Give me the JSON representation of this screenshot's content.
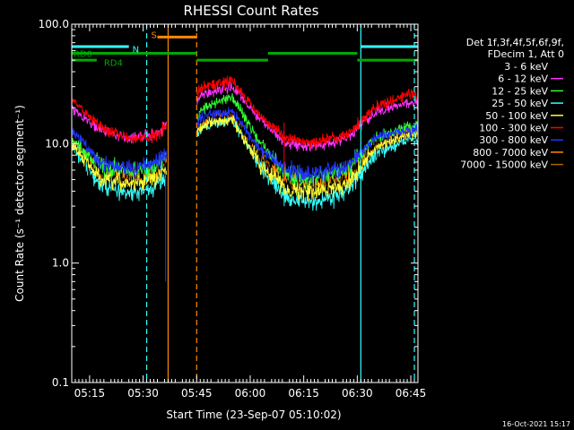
{
  "chart_data": {
    "type": "line",
    "title": "RHESSI Count Rates",
    "xlabel": "Start Time (23-Sep-07 05:10:02)",
    "ylabel": "Count Rate (s⁻¹ detector segment⁻¹)",
    "yscale": "log",
    "ylim": [
      0.1,
      100
    ],
    "xlim_minutes": [
      0,
      97
    ],
    "x_ticks": [
      {
        "label": "05:15",
        "min": 5
      },
      {
        "label": "05:30",
        "min": 20
      },
      {
        "label": "05:45",
        "min": 35
      },
      {
        "label": "06:00",
        "min": 50
      },
      {
        "label": "06:15",
        "min": 65
      },
      {
        "label": "06:30",
        "min": 80
      },
      {
        "label": "06:45",
        "min": 95
      }
    ],
    "y_ticks": [
      {
        "label": "100.0",
        "value": 100
      },
      {
        "label": "10.0",
        "value": 10
      },
      {
        "label": "1.0",
        "value": 1
      },
      {
        "label": "0.1",
        "value": 0.1
      }
    ],
    "legend_header": [
      "Det 1f,3f,4f,5f,6f,9f,",
      "FDecim 1, Att 0"
    ],
    "series": [
      {
        "name": "3 - 6 keV",
        "color": "#000000",
        "knots": [
          [
            0,
            10
          ],
          [
            8,
            5.5
          ],
          [
            16,
            4.8
          ],
          [
            22,
            5.2
          ],
          [
            24,
            5.5
          ],
          [
            37,
            16
          ],
          [
            45,
            18
          ],
          [
            52,
            8
          ],
          [
            60,
            4.5
          ],
          [
            68,
            4
          ],
          [
            77,
            5
          ],
          [
            85,
            10
          ],
          [
            94,
            12
          ]
        ]
      },
      {
        "name": "6 - 12 keV",
        "color": "#ff33ff",
        "knots": [
          [
            0,
            20
          ],
          [
            8,
            13
          ],
          [
            16,
            11
          ],
          [
            22,
            12
          ],
          [
            24,
            12.5
          ],
          [
            37,
            26
          ],
          [
            45,
            30
          ],
          [
            52,
            17
          ],
          [
            60,
            10
          ],
          [
            68,
            9.5
          ],
          [
            77,
            11
          ],
          [
            85,
            18
          ],
          [
            94,
            22
          ]
        ]
      },
      {
        "name": "12 - 25 keV",
        "color": "#33ff33",
        "knots": [
          [
            0,
            11
          ],
          [
            8,
            6.5
          ],
          [
            16,
            5.8
          ],
          [
            22,
            6.2
          ],
          [
            24,
            6.5
          ],
          [
            37,
            20
          ],
          [
            45,
            25
          ],
          [
            52,
            11
          ],
          [
            60,
            5.5
          ],
          [
            68,
            5
          ],
          [
            77,
            6
          ],
          [
            85,
            11
          ],
          [
            94,
            14
          ]
        ]
      },
      {
        "name": "25 - 50 keV",
        "color": "#33ffff",
        "knots": [
          [
            0,
            9.5
          ],
          [
            8,
            4.5
          ],
          [
            16,
            3.8
          ],
          [
            22,
            4
          ],
          [
            24,
            4.5
          ],
          [
            37,
            14
          ],
          [
            45,
            16
          ],
          [
            52,
            7
          ],
          [
            60,
            3.5
          ],
          [
            68,
            3.2
          ],
          [
            77,
            4
          ],
          [
            85,
            8
          ],
          [
            94,
            11
          ]
        ]
      },
      {
        "name": "50 - 100 keV",
        "color": "#ffff33",
        "knots": [
          [
            0,
            10
          ],
          [
            8,
            5
          ],
          [
            16,
            4.6
          ],
          [
            22,
            5
          ],
          [
            24,
            5.2
          ],
          [
            37,
            14.5
          ],
          [
            45,
            16
          ],
          [
            52,
            7.2
          ],
          [
            60,
            4.2
          ],
          [
            68,
            3.9
          ],
          [
            77,
            4.6
          ],
          [
            85,
            9
          ],
          [
            94,
            12
          ]
        ]
      },
      {
        "name": "100 - 300 keV",
        "color": "#ff0000",
        "knots": [
          [
            0,
            24
          ],
          [
            8,
            14
          ],
          [
            16,
            11
          ],
          [
            22,
            11.5
          ],
          [
            24,
            12
          ],
          [
            37,
            30
          ],
          [
            45,
            34
          ],
          [
            52,
            18
          ],
          [
            60,
            11
          ],
          [
            68,
            10
          ],
          [
            77,
            12
          ],
          [
            85,
            20
          ],
          [
            94,
            26
          ]
        ]
      },
      {
        "name": "300 - 800 keV",
        "color": "#2233ff",
        "knots": [
          [
            0,
            13
          ],
          [
            8,
            7
          ],
          [
            16,
            6.2
          ],
          [
            22,
            6.6
          ],
          [
            24,
            7
          ],
          [
            37,
            17
          ],
          [
            45,
            19
          ],
          [
            52,
            9.5
          ],
          [
            60,
            6
          ],
          [
            68,
            5.6
          ],
          [
            77,
            6.4
          ],
          [
            85,
            11
          ],
          [
            94,
            13
          ]
        ]
      },
      {
        "name": "800 - 7000 keV",
        "color": "#ff8800",
        "knots": [
          [
            0,
            10.5
          ],
          [
            8,
            5.5
          ],
          [
            16,
            5
          ],
          [
            22,
            5.4
          ],
          [
            24,
            5.6
          ],
          [
            37,
            15
          ],
          [
            45,
            17
          ],
          [
            52,
            8
          ],
          [
            60,
            4.8
          ],
          [
            68,
            4.5
          ],
          [
            77,
            5.2
          ],
          [
            85,
            9.5
          ],
          [
            94,
            12.5
          ]
        ]
      },
      {
        "name": "7000 - 15000 keV",
        "color": "#aa6600",
        "knots": []
      }
    ],
    "data_gaps_minutes": [
      [
        26.6,
        35
      ]
    ],
    "vertical_markers": [
      {
        "min": 21,
        "color": "#33ffff",
        "style": "dashed"
      },
      {
        "min": 27,
        "color": "#ff8800",
        "style": "solid"
      },
      {
        "min": 35,
        "color": "#ff8800",
        "style": "dashed"
      },
      {
        "min": 81,
        "color": "#33ffff",
        "style": "solid"
      },
      {
        "min": 96,
        "color": "#33ffff",
        "style": "dashed"
      }
    ],
    "attenuator_bars": [
      {
        "start": 0,
        "end": 16,
        "level": 65,
        "color": "#33ffff",
        "label": ""
      },
      {
        "start": 24,
        "end": 35,
        "level": 78,
        "color": "#ff8800",
        "label": "S"
      },
      {
        "start": 81,
        "end": 97,
        "level": 65,
        "color": "#33ffff",
        "label": ""
      },
      {
        "start": 0,
        "end": 35,
        "level": 57,
        "color": "#00aa00",
        "label": ""
      },
      {
        "start": 35,
        "end": 55,
        "level": 50,
        "color": "#00aa00",
        "label": ""
      },
      {
        "start": 55,
        "end": 80,
        "level": 57,
        "color": "#00aa00",
        "label": ""
      },
      {
        "start": 80,
        "end": 97,
        "level": 50,
        "color": "#00aa00",
        "label": ""
      },
      {
        "start": 0,
        "end": 7,
        "level": 50,
        "color": "#00aa00",
        "label": ""
      }
    ],
    "attenuator_labels": [
      {
        "text": "N",
        "min": 17,
        "level": 62,
        "color": "#33ffff"
      },
      {
        "text": "RD0",
        "min": 0.5,
        "level": 57,
        "color": "#00aa00"
      },
      {
        "text": "RD4",
        "min": 9,
        "level": 48,
        "color": "#00aa00"
      }
    ],
    "footer_date": "16-Oct-2021 15:17"
  }
}
